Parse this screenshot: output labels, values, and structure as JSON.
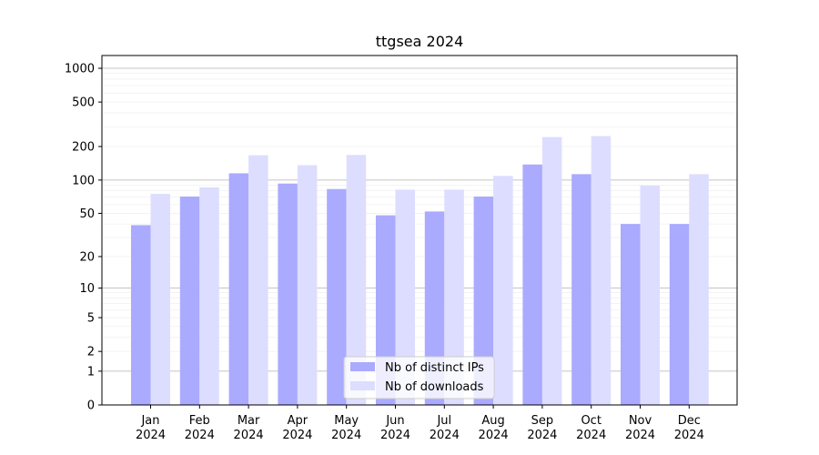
{
  "chart_data": {
    "type": "bar",
    "title": "ttgsea 2024",
    "xlabel": "",
    "ylabel": "",
    "y_scale": "symlog",
    "ylim": [
      0,
      1300
    ],
    "y_ticks": [
      0,
      1,
      2,
      5,
      10,
      20,
      50,
      100,
      200,
      500,
      1000
    ],
    "y_tick_labels": [
      "0",
      "1",
      "2",
      "5",
      "10",
      "20",
      "50",
      "100",
      "200",
      "500",
      "1000"
    ],
    "grid": true,
    "legend_position": "bottom-center",
    "categories": [
      [
        "Jan",
        "2024"
      ],
      [
        "Feb",
        "2024"
      ],
      [
        "Mar",
        "2024"
      ],
      [
        "Apr",
        "2024"
      ],
      [
        "May",
        "2024"
      ],
      [
        "Jun",
        "2024"
      ],
      [
        "Jul",
        "2024"
      ],
      [
        "Aug",
        "2024"
      ],
      [
        "Sep",
        "2024"
      ],
      [
        "Oct",
        "2024"
      ],
      [
        "Nov",
        "2024"
      ],
      [
        "Dec",
        "2024"
      ]
    ],
    "series": [
      {
        "name": "Nb of distinct IPs",
        "color": "#aaaaff",
        "values": [
          39,
          71,
          115,
          93,
          83,
          48,
          52,
          71,
          138,
          113,
          40,
          40
        ]
      },
      {
        "name": "Nb of downloads",
        "color": "#ddddff",
        "values": [
          75,
          86,
          167,
          136,
          168,
          82,
          82,
          109,
          243,
          248,
          89,
          113
        ]
      }
    ]
  }
}
